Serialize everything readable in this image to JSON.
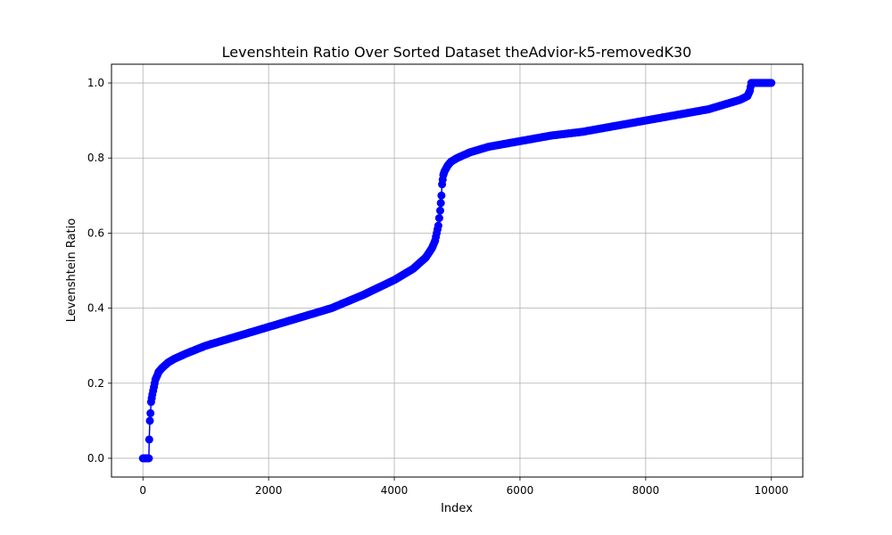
{
  "chart_data": {
    "type": "line",
    "title": "Levenshtein Ratio Over Sorted Dataset theAdvior-k5-removedK30",
    "xlabel": "Index",
    "ylabel": "Levenshtein Ratio",
    "xlim": [
      -500,
      10500
    ],
    "ylim": [
      -0.05,
      1.05
    ],
    "xticks": [
      0,
      2000,
      4000,
      6000,
      8000,
      10000
    ],
    "xtick_labels": [
      "0",
      "2000",
      "4000",
      "6000",
      "8000",
      "10000"
    ],
    "yticks": [
      0.0,
      0.2,
      0.4,
      0.6,
      0.8,
      1.0
    ],
    "ytick_labels": [
      "0.0",
      "0.2",
      "0.4",
      "0.6",
      "0.8",
      "1.0"
    ],
    "grid": true,
    "marker": "circle",
    "series": [
      {
        "color": "#0000ff",
        "x": [
          0,
          50,
          95,
          100,
          110,
          120,
          130,
          150,
          175,
          200,
          250,
          300,
          400,
          500,
          700,
          1000,
          1500,
          2000,
          2500,
          3000,
          3500,
          4000,
          4300,
          4500,
          4600,
          4650,
          4700,
          4730,
          4750,
          4760,
          4780,
          4800,
          4850,
          4900,
          5000,
          5200,
          5500,
          6000,
          6500,
          7000,
          7500,
          8000,
          8500,
          9000,
          9300,
          9500,
          9620,
          9660,
          9680,
          9700,
          9800,
          9900,
          10000
        ],
        "y": [
          0.0,
          0.0,
          0.0,
          0.05,
          0.1,
          0.12,
          0.15,
          0.17,
          0.19,
          0.21,
          0.23,
          0.24,
          0.255,
          0.265,
          0.28,
          0.3,
          0.325,
          0.35,
          0.375,
          0.4,
          0.435,
          0.475,
          0.505,
          0.535,
          0.56,
          0.58,
          0.62,
          0.66,
          0.7,
          0.73,
          0.755,
          0.765,
          0.78,
          0.79,
          0.8,
          0.815,
          0.83,
          0.845,
          0.86,
          0.87,
          0.885,
          0.9,
          0.915,
          0.93,
          0.945,
          0.955,
          0.965,
          0.98,
          1.0,
          1.0,
          1.0,
          1.0,
          1.0
        ]
      }
    ]
  }
}
